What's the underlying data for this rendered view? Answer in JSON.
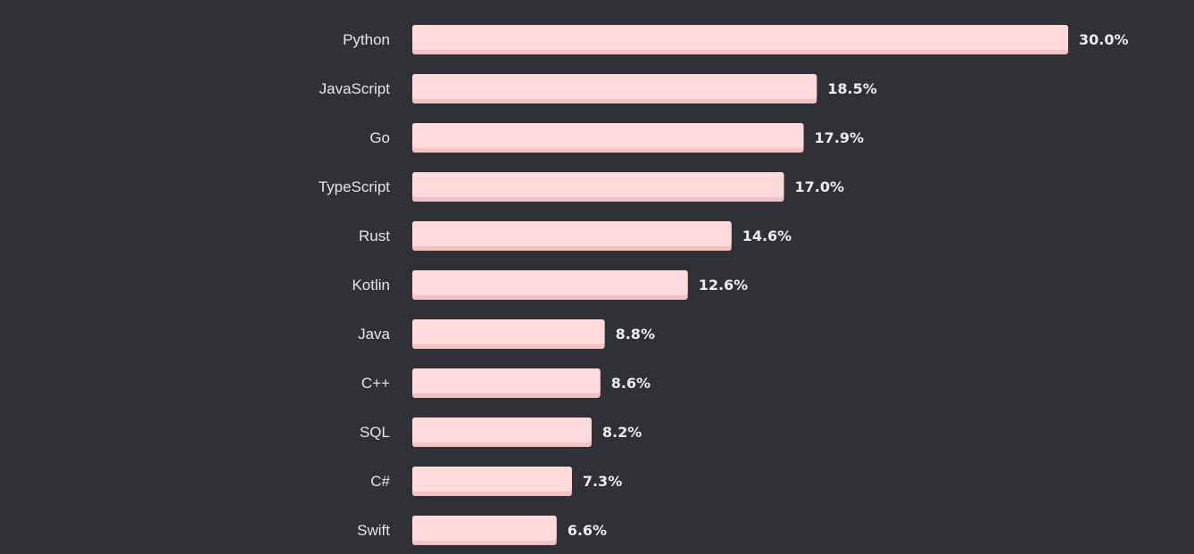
{
  "chart_data": {
    "type": "bar",
    "orientation": "horizontal",
    "categories": [
      "Python",
      "JavaScript",
      "Go",
      "TypeScript",
      "Rust",
      "Kotlin",
      "Java",
      "C++",
      "SQL",
      "C#",
      "Swift"
    ],
    "values": [
      30.0,
      18.5,
      17.9,
      17.0,
      14.6,
      12.6,
      8.8,
      8.6,
      8.2,
      7.3,
      6.6
    ],
    "value_labels": [
      "30.0%",
      "18.5%",
      "17.9%",
      "17.0%",
      "14.6%",
      "12.6%",
      "8.8%",
      "8.6%",
      "8.2%",
      "7.3%",
      "6.6%"
    ],
    "title": "",
    "xlabel": "",
    "ylabel": "",
    "xlim": [
      0,
      30.0
    ],
    "grid": false,
    "legend": "none",
    "colors": {
      "background": "#2f3136",
      "bar": "#ffdada",
      "bar_bottom": "#f2c2c4",
      "category_text": "#e6e6e6",
      "value_text": "#ececec"
    }
  }
}
